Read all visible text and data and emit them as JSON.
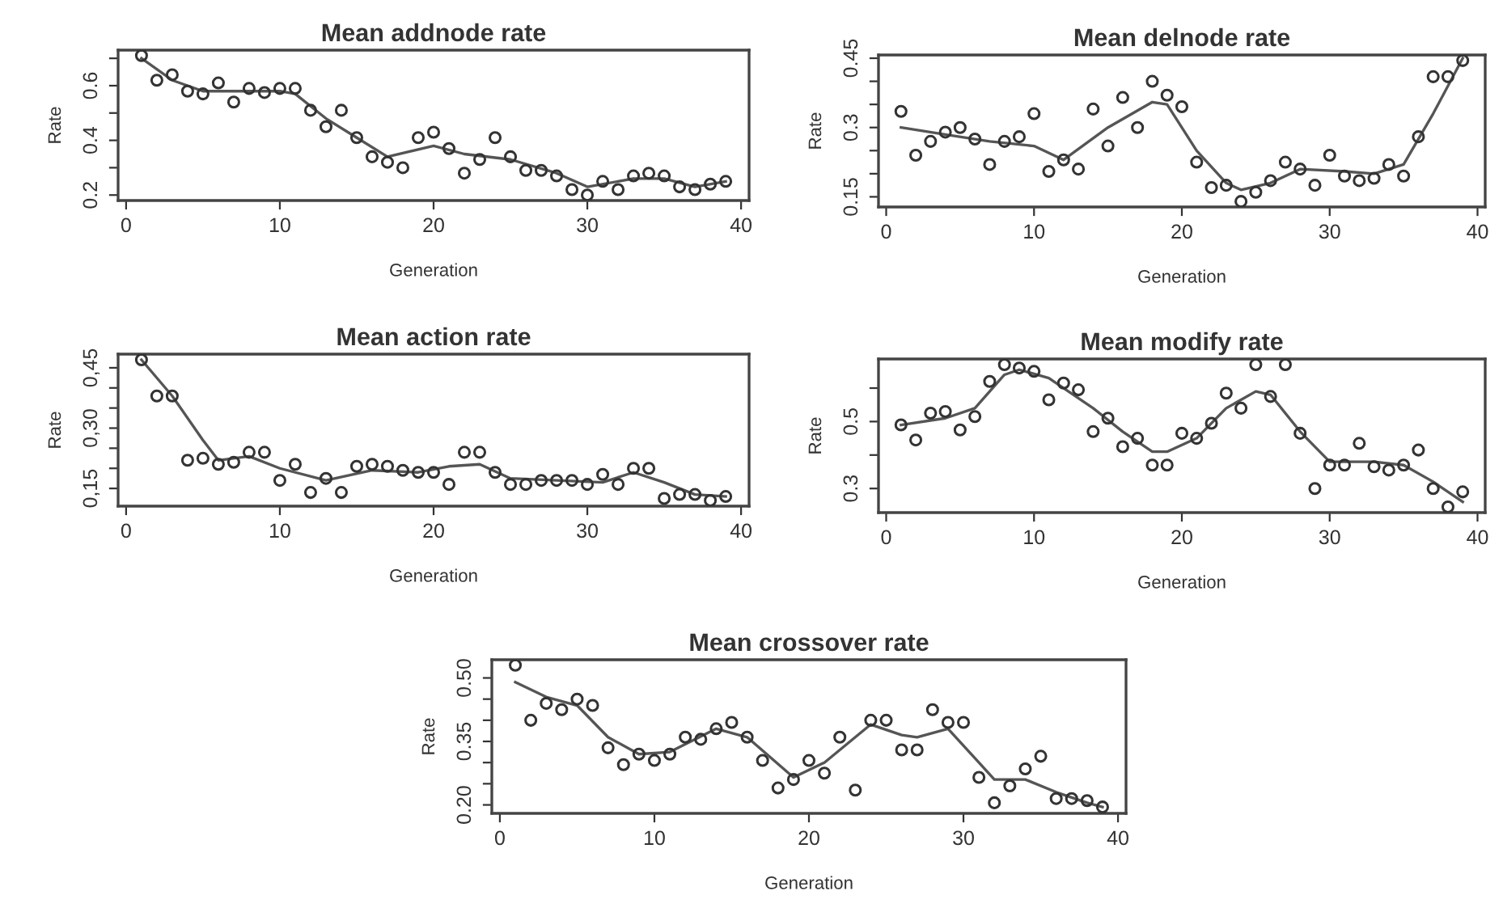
{
  "chart_data": [
    {
      "type": "scatter",
      "title": "Mean addnode rate",
      "xlabel": "Generation",
      "ylabel": "Rate",
      "xlim": [
        -0.52,
        40.52
      ],
      "ylim": [
        0.18,
        0.73
      ],
      "xticks": [
        0,
        10,
        20,
        30,
        40
      ],
      "yticks": [
        0.2,
        {
          "value": 0.3,
          "label": null
        },
        0.4,
        {
          "value": 0.5,
          "label": null
        },
        0.6,
        {
          "value": 0.7,
          "label": null
        }
      ],
      "grid": false,
      "x": [
        1,
        2,
        3,
        4,
        5,
        6,
        7,
        8,
        9,
        10,
        11,
        12,
        13,
        14,
        15,
        16,
        17,
        18,
        19,
        20,
        21,
        22,
        23,
        24,
        25,
        26,
        27,
        28,
        29,
        30,
        31,
        32,
        33,
        34,
        35,
        36,
        37,
        38,
        39
      ],
      "series": [
        {
          "marker": "circle",
          "color": "#333333",
          "values": [
            0.71,
            0.62,
            0.64,
            0.58,
            0.57,
            0.61,
            0.54,
            0.59,
            0.575,
            0.59,
            0.59,
            0.51,
            0.45,
            0.51,
            0.41,
            0.34,
            0.32,
            0.3,
            0.41,
            0.43,
            0.37,
            0.28,
            0.33,
            0.41,
            0.34,
            0.29,
            0.29,
            0.27,
            0.22,
            0.2,
            0.25,
            0.22,
            0.27,
            0.28,
            0.27,
            0.23,
            0.22,
            0.24,
            0.25
          ]
        },
        {
          "type": "line",
          "color": "#555555",
          "x": [
            1,
            3,
            5,
            7,
            10,
            11,
            13,
            15,
            17,
            20,
            22,
            25,
            28,
            30,
            33,
            35,
            37,
            39
          ],
          "values": [
            0.7,
            0.62,
            0.58,
            0.58,
            0.58,
            0.57,
            0.48,
            0.41,
            0.34,
            0.38,
            0.35,
            0.33,
            0.28,
            0.23,
            0.26,
            0.26,
            0.23,
            0.25
          ]
        }
      ]
    },
    {
      "type": "scatter",
      "title": "Mean delnode rate",
      "xlabel": "Generation",
      "ylabel": "Rate",
      "xlim": [
        -0.52,
        40.52
      ],
      "ylim": [
        0.128,
        0.457
      ],
      "xticks": [
        0,
        10,
        20,
        30,
        40
      ],
      "yticks": [
        0.15,
        {
          "value": 0.2,
          "label": null
        },
        {
          "value": 0.25,
          "label": null
        },
        0.3,
        {
          "value": 0.35,
          "label": null
        },
        {
          "value": 0.4,
          "label": null
        },
        0.45
      ],
      "grid": false,
      "x": [
        1,
        2,
        3,
        4,
        5,
        6,
        7,
        8,
        9,
        10,
        11,
        12,
        13,
        14,
        15,
        16,
        17,
        18,
        19,
        20,
        21,
        22,
        23,
        24,
        25,
        26,
        27,
        28,
        29,
        30,
        31,
        32,
        33,
        34,
        35,
        36,
        37,
        38,
        39
      ],
      "series": [
        {
          "marker": "circle",
          "color": "#333333",
          "values": [
            0.335,
            0.24,
            0.27,
            0.29,
            0.3,
            0.275,
            0.22,
            0.27,
            0.28,
            0.33,
            0.205,
            0.23,
            0.21,
            0.34,
            0.26,
            0.365,
            0.3,
            0.4,
            0.37,
            0.345,
            0.225,
            0.17,
            0.175,
            0.14,
            0.16,
            0.185,
            0.225,
            0.21,
            0.175,
            0.24,
            0.195,
            0.185,
            0.19,
            0.22,
            0.195,
            0.28,
            0.41,
            0.41,
            0.445
          ]
        },
        {
          "type": "line",
          "color": "#555555",
          "x": [
            1,
            4,
            7,
            10,
            12,
            15,
            18,
            19,
            21,
            23,
            24,
            26,
            28,
            31,
            33,
            35,
            37,
            39
          ],
          "values": [
            0.3,
            0.285,
            0.27,
            0.26,
            0.23,
            0.3,
            0.355,
            0.35,
            0.25,
            0.18,
            0.165,
            0.18,
            0.21,
            0.205,
            0.2,
            0.22,
            0.33,
            0.45
          ]
        }
      ]
    },
    {
      "type": "scatter",
      "title": "Mean action rate",
      "xlabel": "Generation",
      "ylabel": "Rate",
      "xlim": [
        -0.52,
        40.52
      ],
      "ylim": [
        0.106,
        0.484
      ],
      "xticks": [
        0,
        10,
        20,
        30,
        40
      ],
      "yticks": [
        {
          "value": 0.15,
          "label": "0,15"
        },
        {
          "value": 0.2,
          "label": null
        },
        {
          "value": 0.25,
          "label": null
        },
        {
          "value": 0.3,
          "label": "0,30"
        },
        {
          "value": 0.35,
          "label": null
        },
        {
          "value": 0.4,
          "label": null
        },
        {
          "value": 0.45,
          "label": "0,45"
        }
      ],
      "grid": false,
      "x": [
        1,
        2,
        3,
        4,
        5,
        6,
        7,
        8,
        9,
        10,
        11,
        12,
        13,
        14,
        15,
        16,
        17,
        18,
        19,
        20,
        21,
        22,
        23,
        24,
        25,
        26,
        27,
        28,
        29,
        30,
        31,
        32,
        33,
        34,
        35,
        36,
        37,
        38,
        39
      ],
      "series": [
        {
          "marker": "circle",
          "color": "#333333",
          "values": [
            0.47,
            0.38,
            0.38,
            0.22,
            0.225,
            0.21,
            0.215,
            0.24,
            0.24,
            0.17,
            0.21,
            0.14,
            0.175,
            0.14,
            0.205,
            0.21,
            0.205,
            0.195,
            0.19,
            0.19,
            0.16,
            0.24,
            0.24,
            0.19,
            0.16,
            0.16,
            0.17,
            0.17,
            0.17,
            0.16,
            0.185,
            0.16,
            0.2,
            0.2,
            0.125,
            0.135,
            0.135,
            0.12,
            0.13
          ]
        },
        {
          "type": "line",
          "color": "#555555",
          "x": [
            1,
            3,
            5,
            6,
            8,
            10,
            13,
            16,
            19,
            21,
            23,
            25,
            28,
            31,
            33,
            35,
            37,
            39
          ],
          "values": [
            0.47,
            0.38,
            0.27,
            0.22,
            0.23,
            0.2,
            0.17,
            0.195,
            0.19,
            0.205,
            0.21,
            0.175,
            0.17,
            0.165,
            0.19,
            0.165,
            0.135,
            0.13
          ]
        }
      ]
    },
    {
      "type": "scatter",
      "title": "Mean modify rate",
      "xlabel": "Generation",
      "ylabel": "Rate",
      "xlim": [
        -0.52,
        40.52
      ],
      "ylim": [
        0.228,
        0.687
      ],
      "xticks": [
        0,
        10,
        20,
        30,
        40
      ],
      "yticks": [
        0.3,
        {
          "value": 0.4,
          "label": null
        },
        0.5,
        {
          "value": 0.6,
          "label": null
        }
      ],
      "grid": false,
      "x": [
        1,
        2,
        3,
        4,
        5,
        6,
        7,
        8,
        9,
        10,
        11,
        12,
        13,
        14,
        15,
        16,
        17,
        18,
        19,
        20,
        21,
        22,
        23,
        24,
        25,
        26,
        27,
        28,
        29,
        30,
        31,
        32,
        33,
        34,
        35,
        36,
        37,
        38,
        39
      ],
      "series": [
        {
          "marker": "circle",
          "color": "#333333",
          "values": [
            0.49,
            0.445,
            0.525,
            0.53,
            0.475,
            0.515,
            0.62,
            0.67,
            0.66,
            0.65,
            0.565,
            0.615,
            0.595,
            0.47,
            0.51,
            0.425,
            0.45,
            0.37,
            0.37,
            0.465,
            0.45,
            0.495,
            0.585,
            0.54,
            0.67,
            0.575,
            0.67,
            0.465,
            0.3,
            0.37,
            0.37,
            0.435,
            0.365,
            0.355,
            0.37,
            0.415,
            0.3,
            0.245,
            0.29
          ]
        },
        {
          "type": "line",
          "color": "#555555",
          "x": [
            1,
            4,
            6,
            8,
            9,
            11,
            14,
            16,
            18,
            19,
            21,
            23,
            25,
            26,
            28,
            30,
            33,
            35,
            37,
            39
          ],
          "values": [
            0.49,
            0.51,
            0.54,
            0.64,
            0.655,
            0.63,
            0.54,
            0.47,
            0.41,
            0.41,
            0.45,
            0.54,
            0.59,
            0.58,
            0.47,
            0.38,
            0.38,
            0.37,
            0.32,
            0.26
          ]
        }
      ]
    },
    {
      "type": "scatter",
      "title": "Mean crossover rate",
      "xlabel": "Generation",
      "ylabel": "Rate",
      "xlim": [
        -0.52,
        40.52
      ],
      "ylim": [
        0.18,
        0.543
      ],
      "xticks": [
        0,
        10,
        20,
        30,
        40
      ],
      "yticks": [
        {
          "value": 0.2,
          "label": "0.20"
        },
        {
          "value": 0.25,
          "label": null
        },
        {
          "value": 0.3,
          "label": null
        },
        0.35,
        {
          "value": 0.4,
          "label": null
        },
        {
          "value": 0.45,
          "label": null
        },
        {
          "value": 0.5,
          "label": "0.50"
        }
      ],
      "grid": false,
      "x": [
        1,
        2,
        3,
        4,
        5,
        6,
        7,
        8,
        9,
        10,
        11,
        12,
        13,
        14,
        15,
        16,
        17,
        18,
        19,
        20,
        21,
        22,
        23,
        24,
        25,
        26,
        27,
        28,
        29,
        30,
        31,
        32,
        33,
        34,
        35,
        36,
        37,
        38,
        39
      ],
      "series": [
        {
          "marker": "circle",
          "color": "#333333",
          "values": [
            0.53,
            0.4,
            0.44,
            0.425,
            0.45,
            0.435,
            0.335,
            0.295,
            0.32,
            0.305,
            0.32,
            0.36,
            0.355,
            0.38,
            0.395,
            0.36,
            0.305,
            0.24,
            0.26,
            0.305,
            0.275,
            0.36,
            0.235,
            0.4,
            0.4,
            0.33,
            0.33,
            0.425,
            0.395,
            0.395,
            0.265,
            0.205,
            0.245,
            0.285,
            0.315,
            0.215,
            0.215,
            0.21,
            0.195
          ]
        },
        {
          "type": "line",
          "color": "#555555",
          "x": [
            1,
            3,
            5,
            7,
            9,
            11,
            14,
            16,
            19,
            21,
            24,
            26,
            27,
            29,
            31,
            32,
            34,
            36,
            38,
            39
          ],
          "values": [
            0.49,
            0.455,
            0.435,
            0.36,
            0.32,
            0.325,
            0.38,
            0.36,
            0.265,
            0.3,
            0.39,
            0.365,
            0.36,
            0.38,
            0.3,
            0.26,
            0.26,
            0.23,
            0.205,
            0.195
          ]
        }
      ]
    }
  ]
}
